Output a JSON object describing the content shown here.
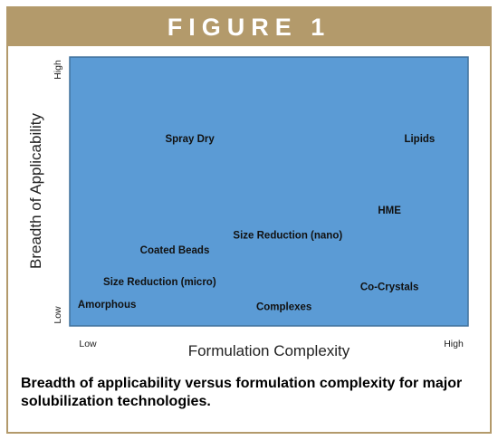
{
  "figure": {
    "banner": "FIGURE 1",
    "caption": "Breadth of applicability versus formulation complexity for major solubilization technologies."
  },
  "colors": {
    "border": "#b39a6b",
    "plot_fill": "#5b9bd5",
    "plot_stroke": "#41719c"
  },
  "chart_data": {
    "type": "scatter",
    "xlabel": "Formulation Complexity",
    "ylabel": "Breadth of Applicability",
    "xlim": [
      0,
      100
    ],
    "ylim": [
      0,
      100
    ],
    "x_ticks": [
      {
        "value": 0,
        "label": "Low"
      },
      {
        "value": 100,
        "label": "High"
      }
    ],
    "y_ticks": [
      {
        "value": 0,
        "label": "Low"
      },
      {
        "value": 100,
        "label": "High"
      }
    ],
    "grid": false,
    "points": [
      {
        "label": "Spray Dry",
        "x": 29,
        "y": 70
      },
      {
        "label": "Lipids",
        "x": 90,
        "y": 70
      },
      {
        "label": "HME",
        "x": 82,
        "y": 41
      },
      {
        "label": "Size Reduction (nano)",
        "x": 55,
        "y": 31
      },
      {
        "label": "Coated Beads",
        "x": 25,
        "y": 25
      },
      {
        "label": "Size Reduction (micro)",
        "x": 21,
        "y": 12
      },
      {
        "label": "Co-Crystals",
        "x": 82,
        "y": 10
      },
      {
        "label": "Amorphous",
        "x": 7,
        "y": 3
      },
      {
        "label": "Complexes",
        "x": 54,
        "y": 2
      }
    ]
  }
}
